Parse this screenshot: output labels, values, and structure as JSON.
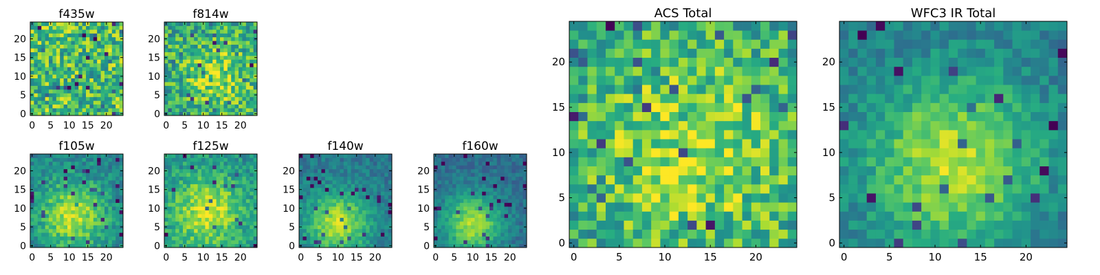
{
  "chart_data": [
    {
      "type": "heatmap",
      "title": "f435w",
      "shape": [
        25,
        25
      ],
      "xlim": [
        -0.5,
        24.5
      ],
      "ylim": [
        -0.5,
        24.5
      ],
      "xticks": [
        0,
        5,
        10,
        15,
        20
      ],
      "yticks": [
        0,
        5,
        10,
        15,
        20
      ],
      "colormap": "viridis",
      "pattern": "noise",
      "seed": 11,
      "center": [
        12,
        12
      ],
      "peak": 0.0,
      "sigma": 6,
      "noise": 0.28,
      "base": 0.7
    },
    {
      "type": "heatmap",
      "title": "f814w",
      "shape": [
        25,
        25
      ],
      "xlim": [
        -0.5,
        24.5
      ],
      "ylim": [
        -0.5,
        24.5
      ],
      "xticks": [
        0,
        5,
        10,
        15,
        20
      ],
      "yticks": [
        0,
        5,
        10,
        15,
        20
      ],
      "colormap": "viridis",
      "pattern": "blob",
      "seed": 23,
      "center": [
        14,
        10
      ],
      "peak": 0.25,
      "sigma": 6,
      "noise": 0.25,
      "base": 0.62
    },
    {
      "type": "heatmap",
      "title": "f105w",
      "shape": [
        25,
        25
      ],
      "xlim": [
        -0.5,
        24.5
      ],
      "ylim": [
        -0.5,
        24.5
      ],
      "xticks": [
        0,
        5,
        10,
        15,
        20
      ],
      "yticks": [
        0,
        5,
        10,
        15,
        20
      ],
      "colormap": "viridis",
      "pattern": "blob",
      "seed": 37,
      "center": [
        11,
        8
      ],
      "peak": 0.45,
      "sigma": 6.5,
      "noise": 0.14,
      "base": 0.45
    },
    {
      "type": "heatmap",
      "title": "f125w",
      "shape": [
        25,
        25
      ],
      "xlim": [
        -0.5,
        24.5
      ],
      "ylim": [
        -0.5,
        24.5
      ],
      "xticks": [
        0,
        5,
        10,
        15,
        20
      ],
      "yticks": [
        0,
        5,
        10,
        15,
        20
      ],
      "colormap": "viridis",
      "pattern": "blob",
      "seed": 41,
      "center": [
        11,
        9
      ],
      "peak": 0.42,
      "sigma": 7,
      "noise": 0.15,
      "base": 0.5
    },
    {
      "type": "heatmap",
      "title": "f140w",
      "shape": [
        25,
        25
      ],
      "xlim": [
        -0.5,
        24.5
      ],
      "ylim": [
        -0.5,
        24.5
      ],
      "xticks": [
        0,
        5,
        10,
        15,
        20
      ],
      "yticks": [
        0,
        5,
        10,
        15,
        20
      ],
      "colormap": "viridis",
      "pattern": "blob",
      "seed": 53,
      "center": [
        10,
        6
      ],
      "peak": 0.5,
      "sigma": 6,
      "noise": 0.1,
      "base": 0.4
    },
    {
      "type": "heatmap",
      "title": "f160w",
      "shape": [
        25,
        25
      ],
      "xlim": [
        -0.5,
        24.5
      ],
      "ylim": [
        -0.5,
        24.5
      ],
      "xticks": [
        0,
        5,
        10,
        15,
        20
      ],
      "yticks": [
        0,
        5,
        10,
        15,
        20
      ],
      "colormap": "viridis",
      "pattern": "blob",
      "seed": 67,
      "center": [
        10,
        6
      ],
      "peak": 0.52,
      "sigma": 5.5,
      "noise": 0.09,
      "base": 0.36
    },
    {
      "type": "heatmap",
      "title": "ACS Total",
      "shape": [
        25,
        25
      ],
      "xlim": [
        -0.5,
        24.5
      ],
      "ylim": [
        -0.5,
        24.5
      ],
      "xticks": [
        0,
        5,
        10,
        15,
        20
      ],
      "yticks": [
        0,
        5,
        10,
        15,
        20
      ],
      "colormap": "viridis",
      "pattern": "blob",
      "seed": 79,
      "center": [
        13,
        10
      ],
      "peak": 0.25,
      "sigma": 7,
      "noise": 0.24,
      "base": 0.62
    },
    {
      "type": "heatmap",
      "title": "WFC3 IR Total",
      "shape": [
        25,
        25
      ],
      "xlim": [
        -0.5,
        24.5
      ],
      "ylim": [
        -0.5,
        24.5
      ],
      "xticks": [
        0,
        5,
        10,
        15,
        20
      ],
      "yticks": [
        0,
        5,
        10,
        15,
        20
      ],
      "colormap": "viridis",
      "pattern": "blob",
      "seed": 97,
      "center": [
        12,
        9
      ],
      "peak": 0.48,
      "sigma": 6.5,
      "noise": 0.12,
      "base": 0.42
    }
  ]
}
